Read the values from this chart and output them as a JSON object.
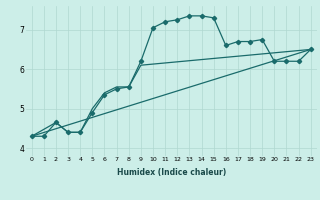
{
  "xlabel": "Humidex (Indice chaleur)",
  "ylabel": "",
  "background_color": "#cceee8",
  "line_color": "#1a6b6b",
  "xlim": [
    -0.5,
    23.5
  ],
  "ylim": [
    3.8,
    7.6
  ],
  "xticks": [
    0,
    1,
    2,
    3,
    4,
    5,
    6,
    7,
    8,
    9,
    10,
    11,
    12,
    13,
    14,
    15,
    16,
    17,
    18,
    19,
    20,
    21,
    22,
    23
  ],
  "yticks": [
    4,
    5,
    6,
    7
  ],
  "series1_x": [
    0,
    1,
    2,
    3,
    4,
    5,
    6,
    7,
    8,
    9,
    10,
    11,
    12,
    13,
    14,
    15,
    16,
    17,
    18,
    19,
    20,
    21,
    22,
    23
  ],
  "series1_y": [
    4.3,
    4.3,
    4.65,
    4.4,
    4.4,
    4.9,
    5.35,
    5.5,
    5.55,
    6.2,
    7.05,
    7.2,
    7.25,
    7.35,
    7.35,
    7.3,
    6.6,
    6.7,
    6.7,
    6.75,
    6.2,
    6.2,
    6.2,
    6.5
  ],
  "series2_x": [
    0,
    2,
    3,
    4,
    5,
    6,
    7,
    8,
    9,
    23
  ],
  "series2_y": [
    4.3,
    4.65,
    4.4,
    4.4,
    5.0,
    5.4,
    5.55,
    5.55,
    6.1,
    6.5
  ],
  "series3_x": [
    0,
    23
  ],
  "series3_y": [
    4.3,
    6.5
  ]
}
